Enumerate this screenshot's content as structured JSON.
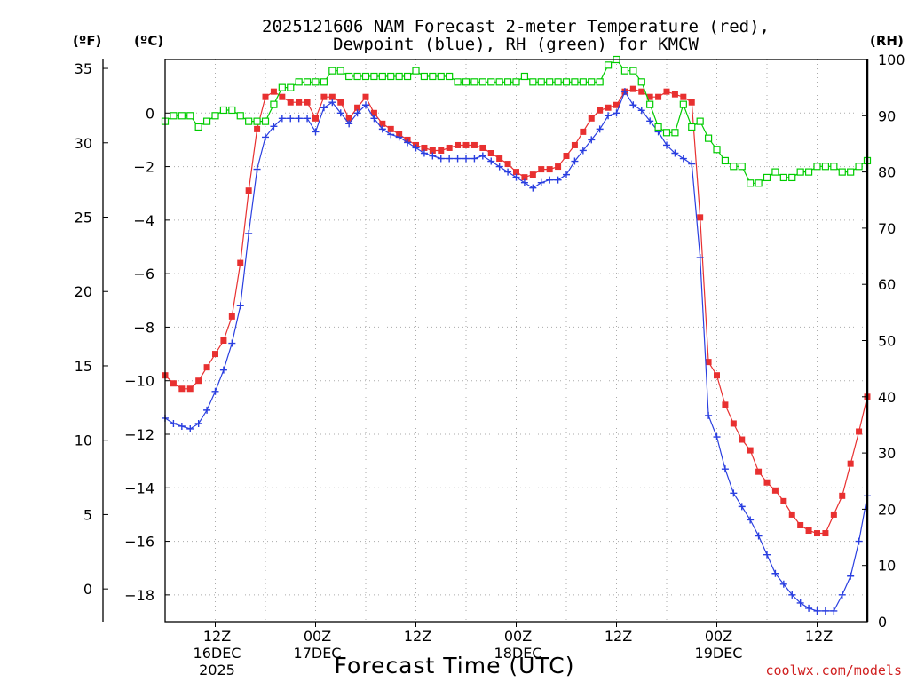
{
  "chart_data": {
    "type": "line",
    "title": [
      "2025121606 NAM Forecast 2-meter Temperature (red),",
      "Dewpoint (blue), RH (green) for KMCW"
    ],
    "unit_labels": {
      "fahrenheit": "(ºF)",
      "celsius": "(ºC)",
      "rh": "(RH)"
    },
    "xlabel": "Forecast Time (UTC)",
    "credit": "coolwx.com/models",
    "x_hours": {
      "start": 6,
      "end": 90,
      "step": 1
    },
    "celsius_range": [
      -19,
      2
    ],
    "fahrenheit_range": [
      -2.2,
      35.6
    ],
    "rh_range": [
      0,
      100
    ],
    "celsius_ticks": [
      "0",
      "−2",
      "−4",
      "−6",
      "−8",
      "−10",
      "−12",
      "−14",
      "−16",
      "−18"
    ],
    "fahrenheit_ticks": [
      "35",
      "30",
      "25",
      "20",
      "15",
      "10",
      "5",
      "0"
    ],
    "rh_ticks": [
      "100",
      "90",
      "80",
      "70",
      "60",
      "50",
      "40",
      "30",
      "20",
      "10",
      "0"
    ],
    "x_ticks": [
      {
        "hour": 12,
        "lines": [
          "12Z",
          "16DEC",
          "2025"
        ]
      },
      {
        "hour": 24,
        "lines": [
          "00Z",
          "17DEC"
        ]
      },
      {
        "hour": 36,
        "lines": [
          "12Z"
        ]
      },
      {
        "hour": 48,
        "lines": [
          "00Z",
          "18DEC"
        ]
      },
      {
        "hour": 60,
        "lines": [
          "12Z"
        ]
      },
      {
        "hour": 72,
        "lines": [
          "00Z",
          "19DEC"
        ]
      },
      {
        "hour": 84,
        "lines": [
          "12Z"
        ]
      }
    ],
    "grid": true,
    "colors": {
      "temperature": "#e83030",
      "dewpoint": "#2a3fe0",
      "rh": "#00cc00",
      "credit": "#d02020"
    },
    "series": [
      {
        "name": "Temperature",
        "unit": "C",
        "color": "#e83030",
        "marker": "filled-square",
        "values": [
          -9.8,
          -10.1,
          -10.3,
          -10.3,
          -10.0,
          -9.5,
          -9.0,
          -8.5,
          -7.6,
          -5.6,
          -2.9,
          -0.6,
          0.6,
          0.8,
          0.6,
          0.4,
          0.4,
          0.4,
          -0.2,
          0.6,
          0.6,
          0.4,
          -0.2,
          0.2,
          0.6,
          0.0,
          -0.4,
          -0.6,
          -0.8,
          -1.0,
          -1.2,
          -1.3,
          -1.4,
          -1.4,
          -1.3,
          -1.2,
          -1.2,
          -1.2,
          -1.3,
          -1.5,
          -1.7,
          -1.9,
          -2.2,
          -2.4,
          -2.3,
          -2.1,
          -2.1,
          -2.0,
          -1.6,
          -1.2,
          -0.7,
          -0.2,
          0.1,
          0.2,
          0.3,
          0.8,
          0.9,
          0.8,
          0.6,
          0.6,
          0.8,
          0.7,
          0.6,
          0.4,
          -3.9,
          -9.3,
          -9.8,
          -10.9,
          -11.6,
          -12.2,
          -12.6,
          -13.4,
          -13.8,
          -14.1,
          -14.5,
          -15.0,
          -15.4,
          -15.6,
          -15.7,
          -15.7,
          -15.0,
          -14.3,
          -13.1,
          -11.9,
          -10.6
        ]
      },
      {
        "name": "Dewpoint",
        "unit": "C",
        "color": "#2a3fe0",
        "marker": "plus",
        "values": [
          -11.4,
          -11.6,
          -11.7,
          -11.8,
          -11.6,
          -11.1,
          -10.4,
          -9.6,
          -8.6,
          -7.2,
          -4.5,
          -2.1,
          -0.9,
          -0.5,
          -0.2,
          -0.2,
          -0.2,
          -0.2,
          -0.7,
          0.2,
          0.4,
          0.0,
          -0.4,
          0.0,
          0.3,
          -0.2,
          -0.6,
          -0.8,
          -0.9,
          -1.1,
          -1.3,
          -1.5,
          -1.6,
          -1.7,
          -1.7,
          -1.7,
          -1.7,
          -1.7,
          -1.6,
          -1.8,
          -2.0,
          -2.2,
          -2.4,
          -2.6,
          -2.8,
          -2.6,
          -2.5,
          -2.5,
          -2.3,
          -1.8,
          -1.4,
          -1.0,
          -0.6,
          -0.1,
          0.0,
          0.8,
          0.3,
          0.1,
          -0.3,
          -0.7,
          -1.2,
          -1.5,
          -1.7,
          -1.9,
          -5.4,
          -11.3,
          -12.1,
          -13.3,
          -14.2,
          -14.7,
          -15.2,
          -15.8,
          -16.5,
          -17.2,
          -17.6,
          -18.0,
          -18.3,
          -18.5,
          -18.6,
          -18.6,
          -18.6,
          -18.0,
          -17.3,
          -16.0,
          -14.3
        ]
      },
      {
        "name": "RH",
        "unit": "%",
        "color": "#00cc00",
        "marker": "open-square",
        "values": [
          89,
          90,
          90,
          90,
          88,
          89,
          90,
          91,
          91,
          90,
          89,
          89,
          89,
          92,
          95,
          95,
          96,
          96,
          96,
          96,
          98,
          98,
          97,
          97,
          97,
          97,
          97,
          97,
          97,
          97,
          98,
          97,
          97,
          97,
          97,
          96,
          96,
          96,
          96,
          96,
          96,
          96,
          96,
          97,
          96,
          96,
          96,
          96,
          96,
          96,
          96,
          96,
          96,
          99,
          100,
          98,
          98,
          96,
          92,
          88,
          87,
          87,
          92,
          88,
          89,
          86,
          84,
          82,
          81,
          81,
          78,
          78,
          79,
          80,
          79,
          79,
          80,
          80,
          81,
          81,
          81,
          80,
          80,
          81,
          82
        ]
      }
    ]
  }
}
